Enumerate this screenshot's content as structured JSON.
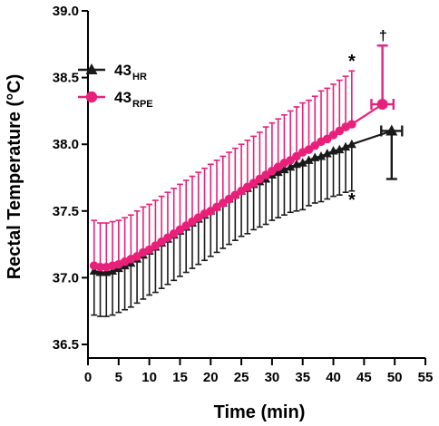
{
  "chart_data": {
    "type": "line",
    "title": "",
    "xlabel": "Time (min)",
    "ylabel": "Rectal Temperature (°C)",
    "xlim": [
      0,
      55
    ],
    "ylim": [
      36.5,
      39.0
    ],
    "x_ticks": [
      "0",
      "5",
      "10",
      "15",
      "20",
      "25",
      "30",
      "35",
      "40",
      "45",
      "50",
      "55"
    ],
    "y_ticks": [
      "36.5",
      "37.0",
      "37.5",
      "38.0",
      "38.5",
      "39.0"
    ],
    "series": [
      {
        "name": "43_HR",
        "name_main": "43",
        "name_sub": "HR",
        "color": "#1a1a1a",
        "marker": "triangle",
        "error_direction": "down",
        "x": [
          1,
          2,
          3,
          4,
          5,
          6,
          7,
          8,
          9,
          10,
          11,
          12,
          13,
          14,
          15,
          16,
          17,
          18,
          19,
          20,
          21,
          22,
          23,
          24,
          25,
          26,
          27,
          28,
          29,
          30,
          31,
          32,
          33,
          34,
          35,
          36,
          37,
          38,
          39,
          40,
          41,
          42,
          43
        ],
        "y": [
          37.05,
          37.04,
          37.04,
          37.05,
          37.07,
          37.09,
          37.11,
          37.14,
          37.17,
          37.2,
          37.23,
          37.26,
          37.29,
          37.32,
          37.35,
          37.38,
          37.41,
          37.44,
          37.47,
          37.5,
          37.53,
          37.56,
          37.59,
          37.62,
          37.65,
          37.67,
          37.7,
          37.72,
          37.74,
          37.77,
          37.79,
          37.81,
          37.83,
          37.85,
          37.86,
          37.88,
          37.9,
          37.91,
          37.93,
          37.95,
          37.96,
          37.98,
          38.0
        ],
        "err": [
          0.33,
          0.33,
          0.33,
          0.33,
          0.33,
          0.33,
          0.33,
          0.33,
          0.33,
          0.33,
          0.34,
          0.34,
          0.34,
          0.34,
          0.34,
          0.34,
          0.34,
          0.34,
          0.34,
          0.34,
          0.34,
          0.34,
          0.34,
          0.34,
          0.34,
          0.34,
          0.34,
          0.34,
          0.34,
          0.34,
          0.34,
          0.34,
          0.34,
          0.35,
          0.35,
          0.34,
          0.34,
          0.34,
          0.34,
          0.34,
          0.34,
          0.34,
          0.35
        ],
        "end_point": {
          "x": 49.5,
          "y": 38.1,
          "err_down": 0.36,
          "x_err": 1.7
        }
      },
      {
        "name": "43_RPE",
        "name_main": "43",
        "name_sub": "RPE",
        "color": "#e8207a",
        "marker": "circle",
        "error_direction": "up",
        "x": [
          1,
          2,
          3,
          4,
          5,
          6,
          7,
          8,
          9,
          10,
          11,
          12,
          13,
          14,
          15,
          16,
          17,
          18,
          19,
          20,
          21,
          22,
          23,
          24,
          25,
          26,
          27,
          28,
          29,
          30,
          31,
          32,
          33,
          34,
          35,
          36,
          37,
          38,
          39,
          40,
          41,
          42,
          43
        ],
        "y": [
          37.09,
          37.08,
          37.08,
          37.09,
          37.1,
          37.12,
          37.14,
          37.16,
          37.19,
          37.21,
          37.24,
          37.27,
          37.3,
          37.33,
          37.36,
          37.39,
          37.42,
          37.45,
          37.48,
          37.5,
          37.53,
          37.56,
          37.59,
          37.62,
          37.65,
          37.68,
          37.71,
          37.74,
          37.77,
          37.8,
          37.83,
          37.86,
          37.88,
          37.91,
          37.94,
          37.96,
          37.99,
          38.02,
          38.04,
          38.07,
          38.1,
          38.13,
          38.15
        ],
        "err": [
          0.34,
          0.33,
          0.33,
          0.33,
          0.33,
          0.33,
          0.33,
          0.34,
          0.34,
          0.34,
          0.34,
          0.34,
          0.34,
          0.34,
          0.34,
          0.34,
          0.34,
          0.34,
          0.34,
          0.35,
          0.35,
          0.35,
          0.35,
          0.35,
          0.35,
          0.35,
          0.35,
          0.35,
          0.36,
          0.36,
          0.36,
          0.36,
          0.37,
          0.37,
          0.37,
          0.37,
          0.37,
          0.38,
          0.38,
          0.38,
          0.38,
          0.38,
          0.4
        ],
        "end_point": {
          "x": 48.0,
          "y": 38.3,
          "err_up": 0.44,
          "x_err": 1.8
        }
      }
    ],
    "annotations": [
      {
        "text": "*",
        "x": 43,
        "y": 38.62
      },
      {
        "text": "*",
        "x": 43,
        "y": 37.58
      },
      {
        "text": "†",
        "x": 48.1,
        "y": 38.82
      }
    ],
    "legend_position": "top-left",
    "grid": false
  }
}
